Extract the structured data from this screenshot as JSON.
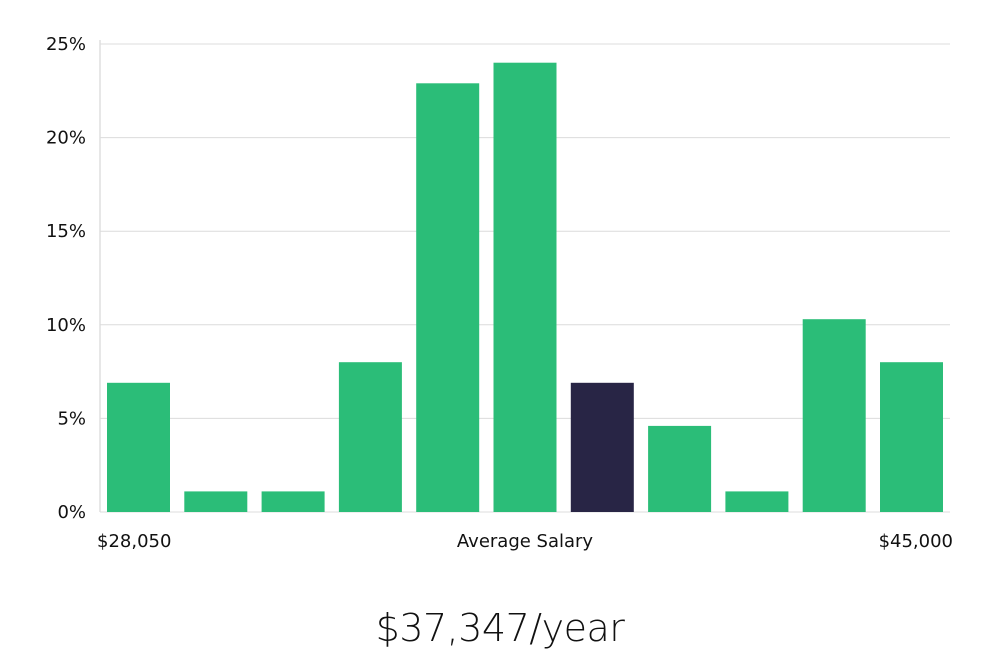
{
  "chart_data": {
    "type": "bar",
    "title": "",
    "xlabel": "Average Salary",
    "ylabel": "",
    "x_min_label": "$28,050",
    "x_max_label": "$45,000",
    "ylim": [
      0,
      25
    ],
    "y_ticks": [
      0,
      5,
      10,
      15,
      20,
      25
    ],
    "y_tick_labels": [
      "0%",
      "5%",
      "10%",
      "15%",
      "20%",
      "25%"
    ],
    "grid": true,
    "values": [
      6.9,
      1.1,
      1.1,
      8.0,
      22.9,
      24.0,
      6.9,
      4.6,
      1.1,
      10.3,
      8.0
    ],
    "highlight_index": 6,
    "colors": {
      "bar": "#2bbd78",
      "highlight": "#282545",
      "grid": "#dcdcdc",
      "axis": "#cfcfcf"
    }
  },
  "salary": {
    "value": "$37,347/year"
  }
}
